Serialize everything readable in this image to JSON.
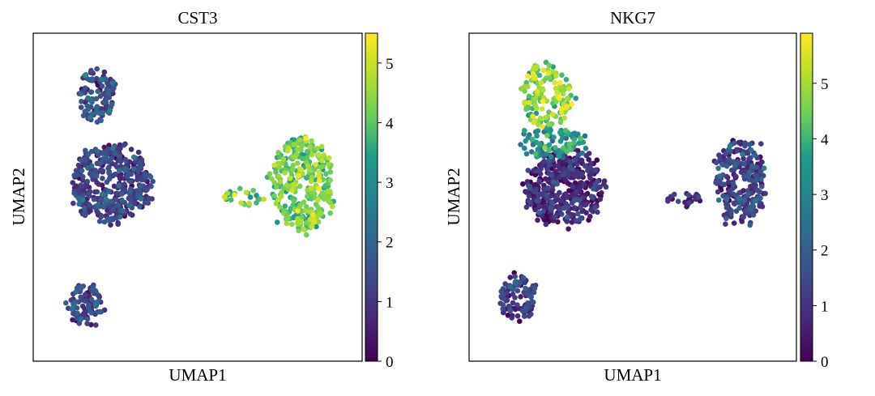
{
  "colormap": {
    "name": "viridis",
    "stops": [
      "#440154",
      "#482777",
      "#3f4a8a",
      "#31678e",
      "#26838f",
      "#1f9d8a",
      "#6cce5a",
      "#b6de2b",
      "#fee825"
    ]
  },
  "chart_data": [
    {
      "type": "scatter",
      "title": "CST3",
      "xlabel": "UMAP1",
      "ylabel": "UMAP2",
      "color_range": [
        0,
        5.5
      ],
      "colorbar_ticks": [
        0,
        1,
        2,
        3,
        4,
        5
      ],
      "clusters": [
        {
          "name": "top-left",
          "n": 120,
          "x_center": 1.5,
          "y_center": 8.7,
          "x_spread": 0.8,
          "y_spread": 0.9,
          "value_mean": 1.3,
          "value_sd": 0.6
        },
        {
          "name": "middle-left",
          "n": 430,
          "x_center": 2.2,
          "y_center": 5.4,
          "x_spread": 1.7,
          "y_spread": 1.3,
          "value_mean": 1.1,
          "value_sd": 0.6
        },
        {
          "name": "bottom-left",
          "n": 100,
          "x_center": 0.9,
          "y_center": 0.9,
          "x_spread": 0.8,
          "y_spread": 0.7,
          "value_mean": 1.2,
          "value_sd": 0.6
        },
        {
          "name": "right",
          "n": 330,
          "x_center": 11.2,
          "y_center": 5.4,
          "x_spread": 1.3,
          "y_spread": 1.6,
          "value_mean": 4.1,
          "value_sd": 0.5
        },
        {
          "name": "right-tail",
          "n": 26,
          "x_center": 8.4,
          "y_center": 4.9,
          "x_spread": 0.9,
          "y_spread": 0.3,
          "value_mean": 4.0,
          "value_sd": 0.7
        }
      ]
    },
    {
      "type": "scatter",
      "title": "NKG7",
      "xlabel": "UMAP1",
      "ylabel": "UMAP2",
      "color_range": [
        0,
        5.9
      ],
      "colorbar_ticks": [
        0,
        1,
        2,
        3,
        4,
        5
      ],
      "clusters": [
        {
          "name": "top-left",
          "n": 150,
          "x_center": 2.2,
          "y_center": 8.7,
          "x_spread": 1.1,
          "y_spread": 1.1,
          "value_mean": 4.6,
          "value_sd": 0.7
        },
        {
          "name": "upper-mid",
          "n": 90,
          "x_center": 2.4,
          "y_center": 6.9,
          "x_spread": 1.5,
          "y_spread": 0.5,
          "value_mean": 3.3,
          "value_sd": 0.6
        },
        {
          "name": "middle-left",
          "n": 420,
          "x_center": 3.0,
          "y_center": 5.2,
          "x_spread": 1.7,
          "y_spread": 1.2,
          "value_mean": 0.6,
          "value_sd": 0.6
        },
        {
          "name": "bottom-left",
          "n": 100,
          "x_center": 0.8,
          "y_center": 1.2,
          "x_spread": 0.8,
          "y_spread": 0.8,
          "value_mean": 0.9,
          "value_sd": 0.6
        },
        {
          "name": "right",
          "n": 260,
          "x_center": 11.3,
          "y_center": 5.5,
          "x_spread": 1.1,
          "y_spread": 1.4,
          "value_mean": 1.1,
          "value_sd": 0.6
        },
        {
          "name": "right-tail",
          "n": 22,
          "x_center": 8.7,
          "y_center": 4.8,
          "x_spread": 0.9,
          "y_spread": 0.3,
          "value_mean": 0.7,
          "value_sd": 0.5
        }
      ]
    }
  ]
}
